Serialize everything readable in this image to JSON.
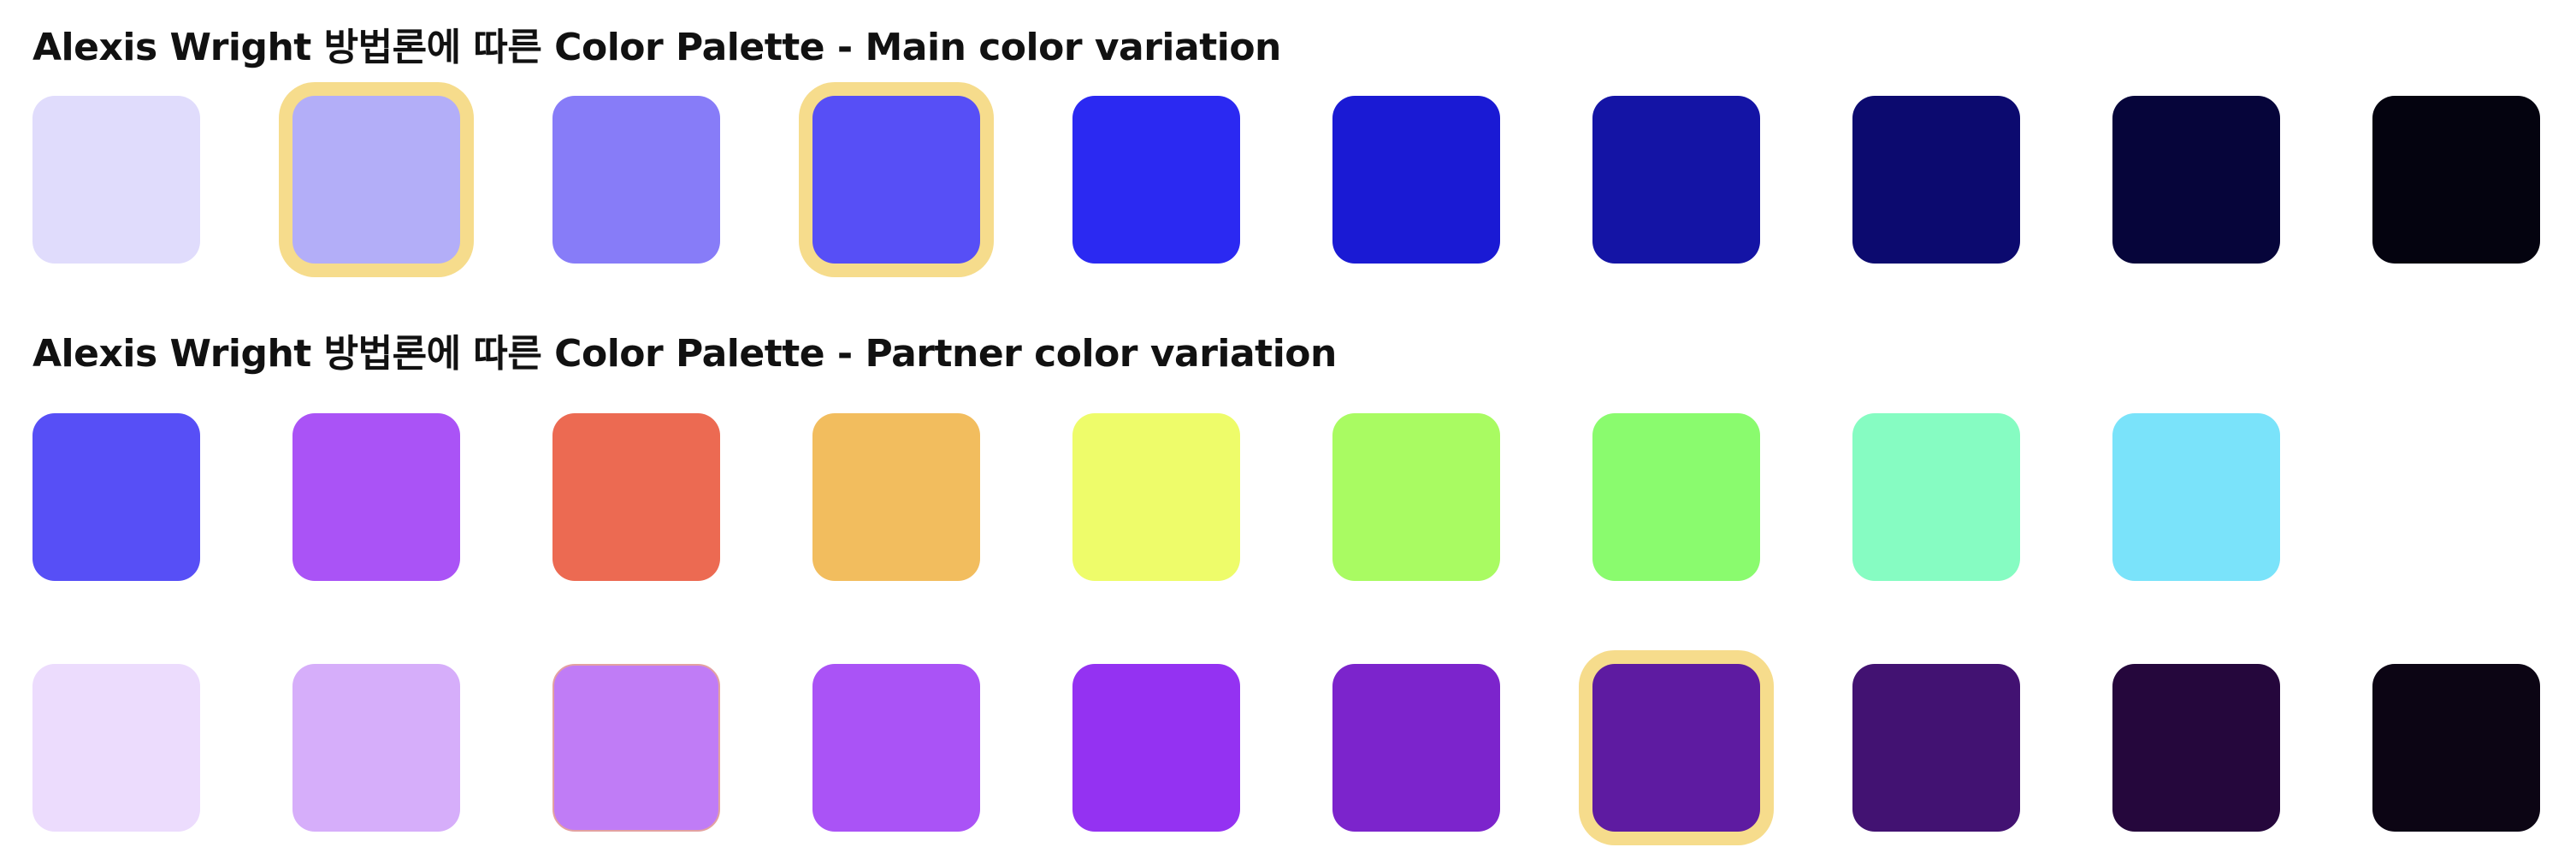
{
  "sections": {
    "main": {
      "title": "Alexis Wright 방법론에 따른 Color Palette - Main color variation",
      "swatches": [
        {
          "color": "#e0dcfc",
          "selected": false
        },
        {
          "color": "#b3aef8",
          "selected": true
        },
        {
          "color": "#877cf8",
          "selected": false
        },
        {
          "color": "#574ff6",
          "selected": true
        },
        {
          "color": "#2b29f2",
          "selected": false
        },
        {
          "color": "#1a1ad4",
          "selected": false
        },
        {
          "color": "#1414a5",
          "selected": false
        },
        {
          "color": "#0c0a6f",
          "selected": false
        },
        {
          "color": "#06053a",
          "selected": false
        },
        {
          "color": "#04030f",
          "selected": false
        }
      ]
    },
    "partner": {
      "title": "Alexis Wright 방법론에 따른 Color Palette - Partner color variation",
      "swatches": [
        {
          "color": "#574ff6",
          "selected": false
        },
        {
          "color": "#aa53f6",
          "selected": false
        },
        {
          "color": "#ec6a52",
          "selected": false
        },
        {
          "color": "#f2bd5e",
          "selected": false
        },
        {
          "color": "#eefc6a",
          "selected": false
        },
        {
          "color": "#a9fb62",
          "selected": false
        },
        {
          "color": "#8afb6e",
          "selected": false
        },
        {
          "color": "#86fcc2",
          "selected": false
        },
        {
          "color": "#7ae3fa",
          "selected": false
        }
      ]
    },
    "purple": {
      "swatches": [
        {
          "color": "#ecdcfd",
          "selected": false
        },
        {
          "color": "#d6aefa",
          "selected": false
        },
        {
          "color": "#c07cf6",
          "selected": false,
          "outlined": true
        },
        {
          "color": "#aa53f6",
          "selected": false
        },
        {
          "color": "#9432f2",
          "selected": false
        },
        {
          "color": "#7c24cc",
          "selected": false
        },
        {
          "color": "#5e1ba1",
          "selected": true
        },
        {
          "color": "#421272",
          "selected": false
        },
        {
          "color": "#25073c",
          "selected": false
        },
        {
          "color": "#0c0514",
          "selected": false
        }
      ]
    }
  },
  "colors": {
    "selection_ring": "#f6dc8c",
    "title_text": "#111111"
  }
}
